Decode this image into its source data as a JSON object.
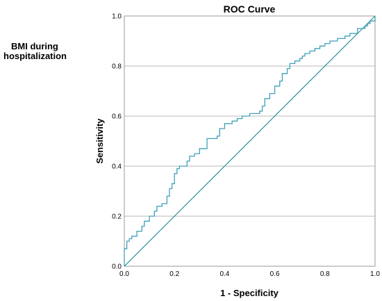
{
  "chart_data": {
    "type": "line",
    "title": "ROC Curve",
    "xlabel": "1 - Specificity",
    "ylabel": "Sensitivity",
    "legend_text": [
      "BMI during",
      "hospitalization"
    ],
    "xlim": [
      0,
      1
    ],
    "ylim": [
      0,
      1
    ],
    "x_ticks": [
      "0.0",
      "0.2",
      "0.4",
      "0.6",
      "0.8",
      "1.0"
    ],
    "y_ticks": [
      "0.0",
      "0.2",
      "0.4",
      "0.6",
      "0.8",
      "1.0"
    ],
    "grid": "horizontal",
    "colors": {
      "roc": "#3fa0b8",
      "reference": "#2b8a9a"
    },
    "series": [
      {
        "type": "step",
        "x": [
          0,
          0,
          0.01,
          0.01,
          0.02,
          0.02,
          0.03,
          0.03,
          0.05,
          0.05,
          0.07,
          0.07,
          0.08,
          0.08,
          0.1,
          0.1,
          0.12,
          0.12,
          0.13,
          0.13,
          0.15,
          0.15,
          0.17,
          0.17,
          0.18,
          0.18,
          0.19,
          0.19,
          0.2,
          0.2,
          0.21,
          0.21,
          0.22,
          0.22,
          0.25,
          0.25,
          0.26,
          0.26,
          0.28,
          0.28,
          0.3,
          0.3,
          0.33,
          0.33,
          0.37,
          0.37,
          0.38,
          0.38,
          0.4,
          0.4,
          0.43,
          0.43,
          0.45,
          0.45,
          0.47,
          0.47,
          0.5,
          0.5,
          0.54,
          0.54,
          0.55,
          0.55,
          0.56,
          0.56,
          0.58,
          0.58,
          0.6,
          0.6,
          0.62,
          0.62,
          0.63,
          0.63,
          0.65,
          0.65,
          0.66,
          0.66,
          0.68,
          0.68,
          0.7,
          0.7,
          0.71,
          0.71,
          0.72,
          0.72,
          0.74,
          0.74,
          0.76,
          0.76,
          0.78,
          0.78,
          0.8,
          0.8,
          0.82,
          0.82,
          0.85,
          0.85,
          0.88,
          0.88,
          0.9,
          0.9,
          0.93,
          0.93,
          0.96,
          0.96,
          0.97,
          0.97,
          0.98,
          0.98,
          1.0,
          1.0
        ],
        "y": [
          0,
          0.07,
          0.07,
          0.1,
          0.1,
          0.11,
          0.11,
          0.12,
          0.12,
          0.14,
          0.14,
          0.16,
          0.16,
          0.18,
          0.18,
          0.2,
          0.2,
          0.22,
          0.22,
          0.24,
          0.24,
          0.25,
          0.25,
          0.28,
          0.28,
          0.31,
          0.31,
          0.33,
          0.33,
          0.37,
          0.37,
          0.39,
          0.39,
          0.4,
          0.4,
          0.42,
          0.42,
          0.44,
          0.44,
          0.45,
          0.45,
          0.47,
          0.47,
          0.51,
          0.51,
          0.52,
          0.52,
          0.55,
          0.55,
          0.57,
          0.57,
          0.58,
          0.58,
          0.59,
          0.59,
          0.6,
          0.6,
          0.61,
          0.61,
          0.62,
          0.62,
          0.64,
          0.64,
          0.67,
          0.67,
          0.69,
          0.69,
          0.72,
          0.72,
          0.74,
          0.74,
          0.77,
          0.77,
          0.79,
          0.79,
          0.81,
          0.81,
          0.82,
          0.82,
          0.83,
          0.83,
          0.84,
          0.84,
          0.85,
          0.85,
          0.86,
          0.86,
          0.87,
          0.87,
          0.88,
          0.88,
          0.89,
          0.89,
          0.9,
          0.9,
          0.91,
          0.91,
          0.92,
          0.92,
          0.93,
          0.93,
          0.95,
          0.95,
          0.96,
          0.96,
          0.97,
          0.97,
          0.98,
          0.98,
          1.0
        ]
      },
      {
        "type": "line",
        "x": [
          0,
          1
        ],
        "y": [
          0,
          1
        ]
      }
    ]
  }
}
